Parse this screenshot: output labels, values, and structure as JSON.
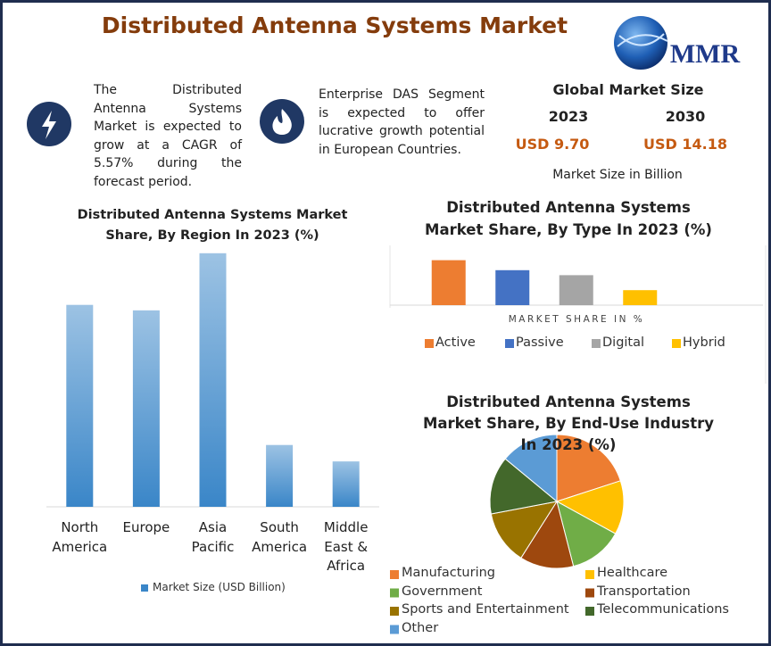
{
  "header": {
    "title": "Distributed Antenna Systems Market",
    "logo_text": "MMR"
  },
  "highlights": [
    {
      "text": "The Distributed Antenna Systems Market is expected to grow at a CAGR of 5.57% during the forecast period."
    },
    {
      "text": "Enterprise DAS Segment is expected to offer lucrative growth potential in European Countries."
    }
  ],
  "market_size": {
    "title": "Global Market Size",
    "years": [
      "2023",
      "2030"
    ],
    "values": [
      "USD 9.70",
      "USD 14.18"
    ],
    "note": "Market Size in Billion"
  },
  "chart_data": [
    {
      "type": "bar",
      "title": "Distributed Antenna Systems Market Share, By Region In 2023 (%)",
      "categories": [
        "North America",
        "Europe",
        "Asia Pacific",
        "South America",
        "Middle East & Africa"
      ],
      "series": [
        {
          "name": "Market Size (USD Billion)",
          "color": "#3a86c8",
          "values": [
            2.58,
            2.51,
            3.24,
            0.79,
            0.58
          ]
        }
      ],
      "ylim": [
        0,
        3.5
      ]
    },
    {
      "type": "grouped-bar",
      "title": "Distributed Antenna Systems Market Share, By Type In 2023 (%)",
      "x_label": "MARKET SHARE IN %",
      "series": [
        {
          "name": "Active",
          "color": "#ed7d31",
          "values": [
            36
          ]
        },
        {
          "name": "Passive",
          "color": "#4472c4",
          "values": [
            28
          ]
        },
        {
          "name": "Digital",
          "color": "#a5a5a5",
          "values": [
            24
          ]
        },
        {
          "name": "Hybrid",
          "color": "#ffc000",
          "values": [
            12
          ]
        }
      ],
      "ylim": [
        0,
        40
      ]
    },
    {
      "type": "pie",
      "title": "Distributed Antenna Systems Market Share, By End-Use Industry In 2023 (%)",
      "categories": [
        "Manufacturing",
        "Healthcare",
        "Government",
        "Transportation",
        "Sports and Entertainment",
        "Telecommunications",
        "Other"
      ],
      "values": [
        20,
        13,
        13,
        13,
        13,
        14,
        14
      ],
      "colors": [
        "#ed7d31",
        "#ffc000",
        "#70ad47",
        "#9e480e",
        "#997300",
        "#43682b",
        "#5b9bd5"
      ]
    }
  ]
}
